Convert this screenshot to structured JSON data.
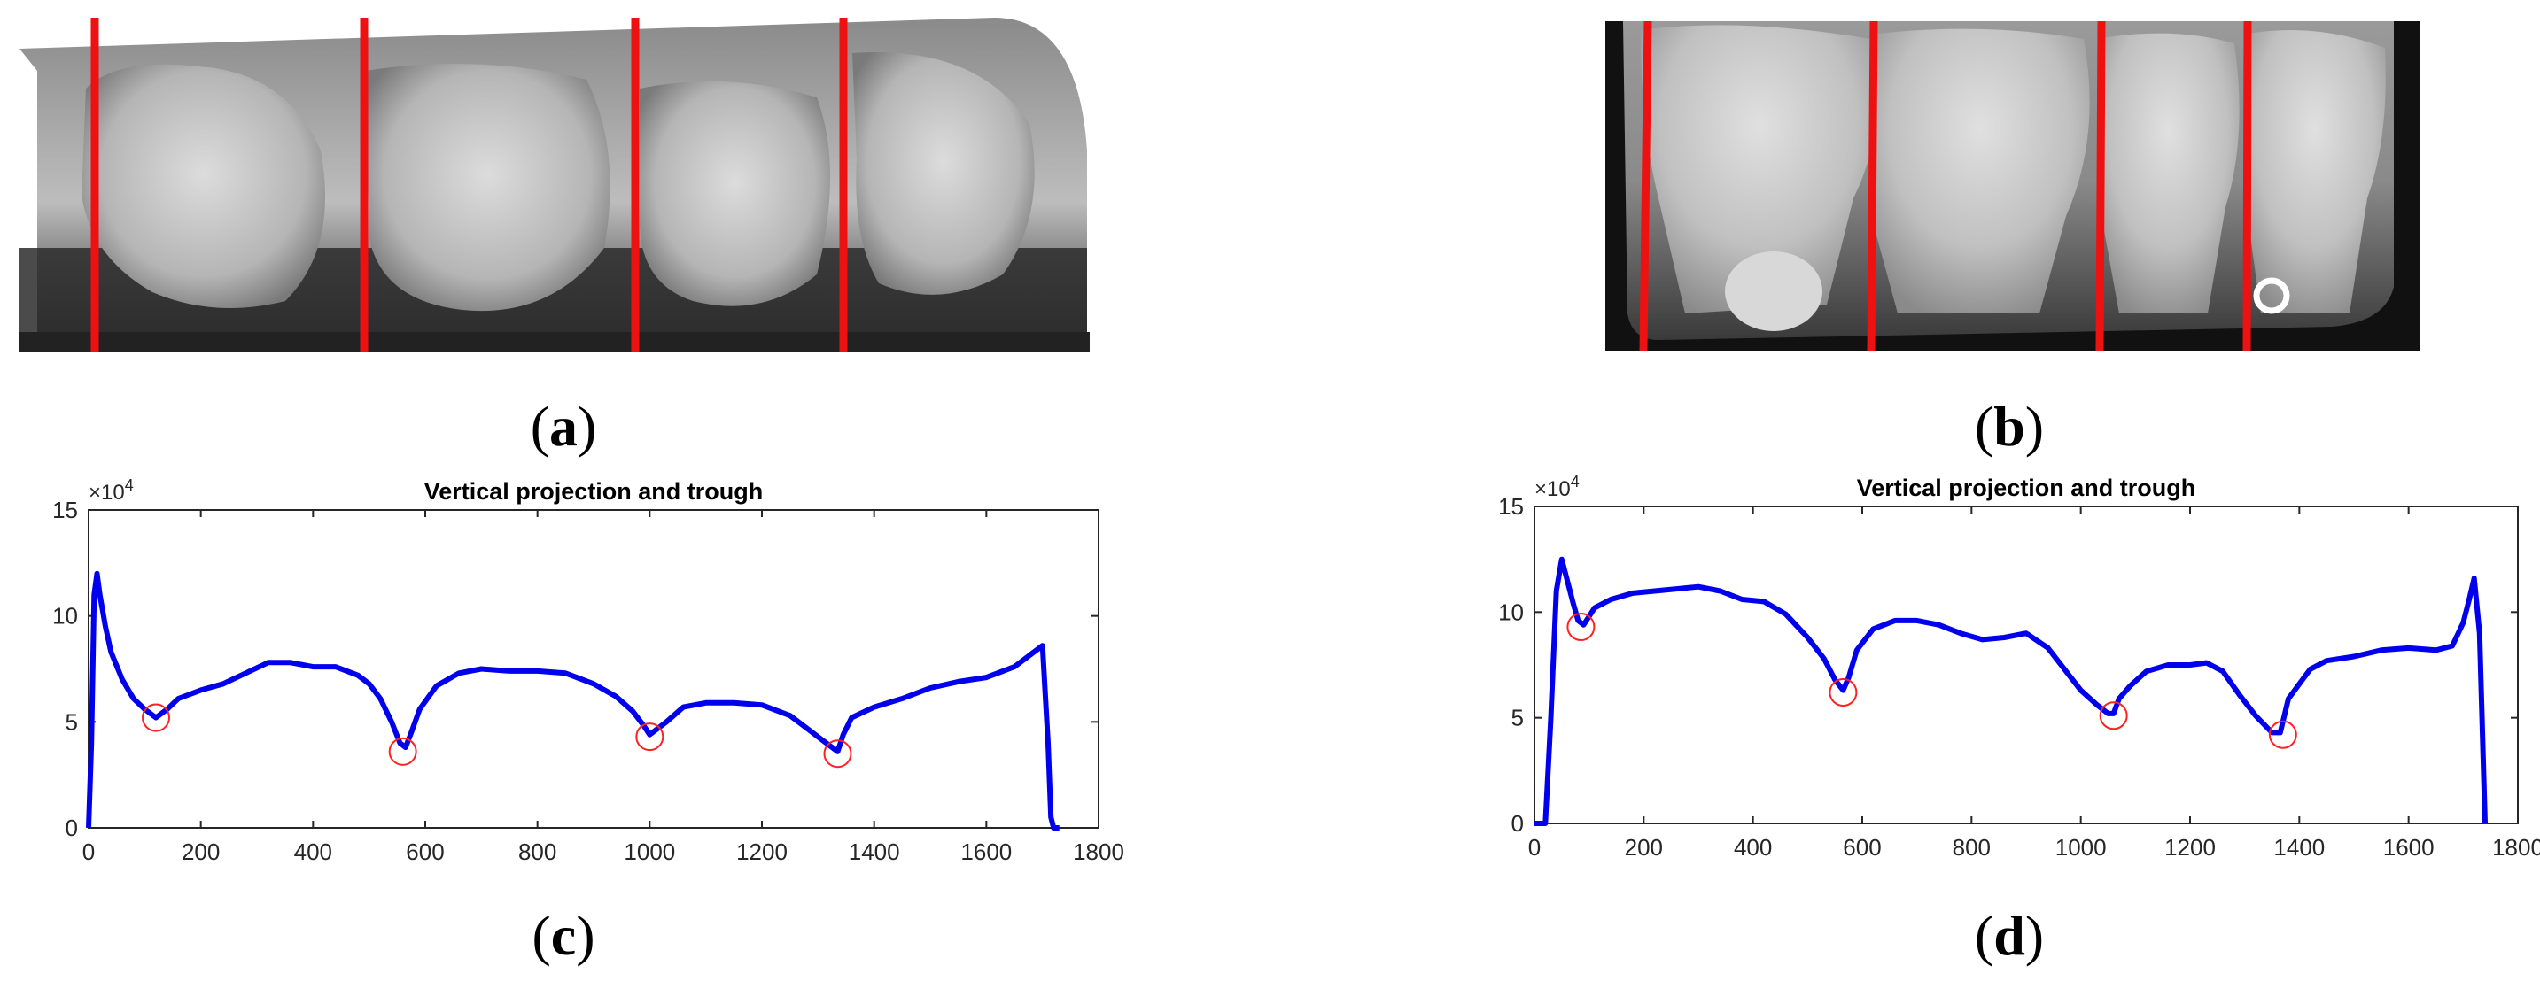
{
  "captions": {
    "a": [
      "(",
      "a",
      ")"
    ],
    "b": [
      "(",
      "b",
      ")"
    ],
    "c": [
      "(",
      "c",
      ")"
    ],
    "d": [
      "(",
      "d",
      ")"
    ]
  },
  "colors": {
    "curve": "#0000ee",
    "trough_marker": "#ff2020",
    "segment_line": "#ee1111",
    "axis": "#262626"
  },
  "chart_data": [
    {
      "type": "line",
      "title": "Vertical projection and trough",
      "xlabel": "",
      "ylabel": "",
      "y_multiplier": "×10",
      "y_multiplier_exp": "4",
      "xlim": [
        0,
        1800
      ],
      "ylim": [
        0,
        15
      ],
      "xticks": [
        0,
        200,
        400,
        600,
        800,
        1000,
        1200,
        1400,
        1600,
        1800
      ],
      "yticks": [
        0,
        5,
        10,
        15
      ],
      "grid": false,
      "series": [
        {
          "x": [
            0,
            5,
            10,
            15,
            20,
            30,
            40,
            60,
            80,
            100,
            120,
            140,
            160,
            200,
            240,
            280,
            320,
            360,
            400,
            440,
            480,
            500,
            520,
            540,
            555,
            565,
            575,
            590,
            620,
            660,
            700,
            750,
            800,
            850,
            900,
            940,
            970,
            990,
            1000,
            1010,
            1030,
            1060,
            1100,
            1150,
            1200,
            1250,
            1280,
            1300,
            1320,
            1335,
            1345,
            1360,
            1400,
            1450,
            1500,
            1550,
            1600,
            1650,
            1680,
            1700,
            1710,
            1715,
            1720,
            1725,
            1730
          ],
          "y": [
            0,
            4,
            11,
            12,
            11,
            9.5,
            8.3,
            7,
            6.1,
            5.6,
            5.2,
            5.6,
            6.1,
            6.5,
            6.8,
            7.3,
            7.8,
            7.8,
            7.6,
            7.6,
            7.2,
            6.8,
            6.1,
            5,
            4,
            3.8,
            4.5,
            5.6,
            6.7,
            7.3,
            7.5,
            7.4,
            7.4,
            7.3,
            6.8,
            6.2,
            5.5,
            4.8,
            4.4,
            4.6,
            5,
            5.7,
            5.9,
            5.9,
            5.8,
            5.3,
            4.7,
            4.3,
            3.9,
            3.6,
            4.4,
            5.2,
            5.7,
            6.1,
            6.6,
            6.9,
            7.1,
            7.6,
            8.2,
            8.6,
            4,
            0.5,
            0,
            0,
            0
          ]
        }
      ],
      "troughs": [
        {
          "x": 120,
          "y": 5.2
        },
        {
          "x": 560,
          "y": 3.6
        },
        {
          "x": 1000,
          "y": 4.3
        },
        {
          "x": 1335,
          "y": 3.5
        }
      ]
    },
    {
      "type": "line",
      "title": "Vertical projection and trough",
      "xlabel": "",
      "ylabel": "",
      "y_multiplier": "×10",
      "y_multiplier_exp": "4",
      "xlim": [
        0,
        1800
      ],
      "ylim": [
        0,
        15
      ],
      "xticks": [
        0,
        200,
        400,
        600,
        800,
        1000,
        1200,
        1400,
        1600,
        1800
      ],
      "yticks": [
        0,
        5,
        10,
        15
      ],
      "grid": false,
      "series": [
        {
          "x": [
            0,
            20,
            30,
            40,
            50,
            60,
            70,
            80,
            90,
            110,
            140,
            180,
            220,
            260,
            300,
            340,
            380,
            420,
            460,
            500,
            530,
            550,
            565,
            575,
            590,
            620,
            660,
            700,
            740,
            780,
            820,
            860,
            900,
            940,
            970,
            1000,
            1030,
            1050,
            1060,
            1070,
            1090,
            1120,
            1160,
            1200,
            1230,
            1260,
            1290,
            1320,
            1350,
            1365,
            1380,
            1400,
            1420,
            1450,
            1500,
            1550,
            1600,
            1650,
            1680,
            1700,
            1710,
            1720,
            1730,
            1740
          ],
          "y": [
            0,
            0,
            5,
            11,
            12.5,
            11.5,
            10.5,
            9.6,
            9.4,
            10.2,
            10.6,
            10.9,
            11,
            11.1,
            11.2,
            11,
            10.6,
            10.5,
            9.9,
            8.8,
            7.8,
            6.8,
            6.3,
            6.9,
            8.2,
            9.2,
            9.6,
            9.6,
            9.4,
            9,
            8.7,
            8.8,
            9,
            8.3,
            7.3,
            6.3,
            5.6,
            5.2,
            5.2,
            5.9,
            6.5,
            7.2,
            7.5,
            7.5,
            7.6,
            7.2,
            6.1,
            5.1,
            4.3,
            4.3,
            5.9,
            6.6,
            7.3,
            7.7,
            7.9,
            8.2,
            8.3,
            8.2,
            8.4,
            9.5,
            10.5,
            11.6,
            9,
            0
          ]
        }
      ],
      "troughs": [
        {
          "x": 85,
          "y": 9.3
        },
        {
          "x": 565,
          "y": 6.2
        },
        {
          "x": 1060,
          "y": 5.1
        },
        {
          "x": 1370,
          "y": 4.2
        }
      ]
    }
  ]
}
